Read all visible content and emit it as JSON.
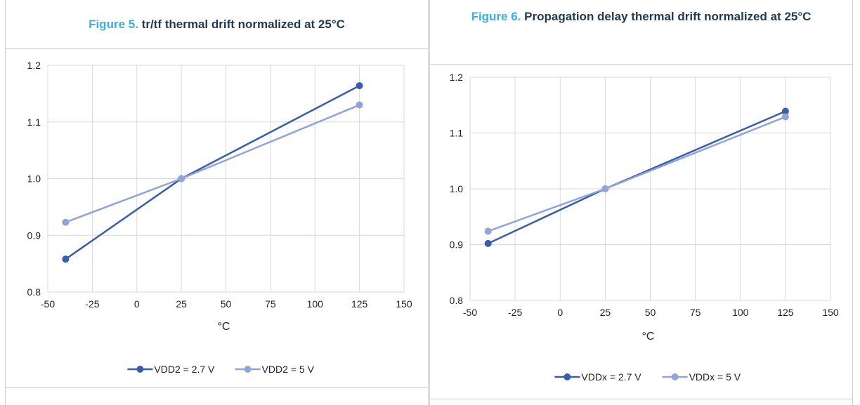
{
  "charts": [
    {
      "figure_number": "Figure 5.",
      "title": "tr/tf thermal drift normalized at 25°C",
      "xlabel": "°C"
    },
    {
      "figure_number": "Figure 6.",
      "title": "Propagation delay thermal drift normalized at 25°C",
      "xlabel": "°C"
    }
  ],
  "chart_data": [
    {
      "type": "line",
      "title": "tr/tf thermal drift normalized at 25°C",
      "xlabel": "°C",
      "ylabel": "",
      "xlim": [
        -50,
        150
      ],
      "ylim": [
        0.8,
        1.2
      ],
      "x_ticks": [
        "-50",
        "-25",
        "0",
        "25",
        "50",
        "75",
        "100",
        "125",
        "150"
      ],
      "y_ticks": [
        "0.8",
        "0.9",
        "1.0",
        "1.1",
        "1.2"
      ],
      "grid": true,
      "legend_position": "bottom",
      "x": [
        -40,
        25,
        125
      ],
      "series": [
        {
          "name": "VDD2 = 2.7 V",
          "color": "#3a5ea8",
          "values": [
            0.858,
            1.0,
            1.164
          ]
        },
        {
          "name": "VDD2 = 5 V",
          "color": "#90a4d8",
          "values": [
            0.923,
            1.0,
            1.13
          ]
        }
      ]
    },
    {
      "type": "line",
      "title": "Propagation delay thermal drift normalized at 25°C",
      "xlabel": "°C",
      "ylabel": "",
      "xlim": [
        -50,
        150
      ],
      "ylim": [
        0.8,
        1.2
      ],
      "x_ticks": [
        "-50",
        "-25",
        "0",
        "25",
        "50",
        "75",
        "100",
        "125",
        "150"
      ],
      "y_ticks": [
        "0.8",
        "0.9",
        "1.0",
        "1.1",
        "1.2"
      ],
      "grid": true,
      "legend_position": "bottom",
      "x": [
        -40,
        25,
        125
      ],
      "series": [
        {
          "name": "VDDx = 2.7 V",
          "color": "#3a5ea8",
          "values": [
            0.902,
            1.0,
            1.139
          ]
        },
        {
          "name": "VDDx = 5 V",
          "color": "#90a4d8",
          "values": [
            0.924,
            1.0,
            1.129
          ]
        }
      ]
    }
  ]
}
